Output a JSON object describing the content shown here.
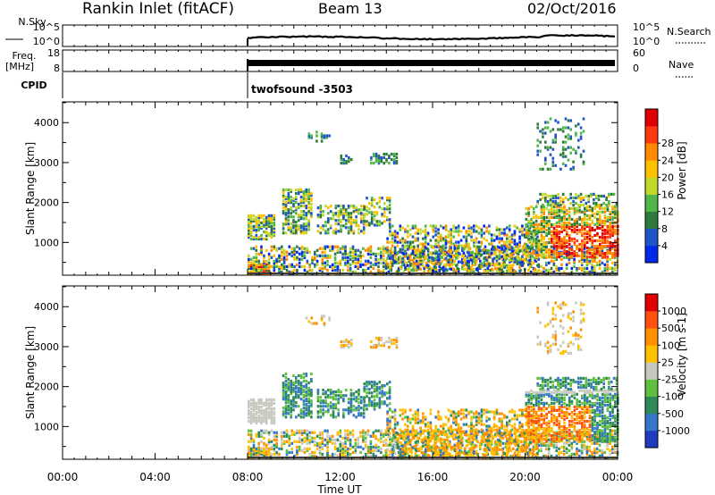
{
  "header": {
    "station": "Rankin Inlet (fitACF)",
    "beam": "Beam 13",
    "date": "02/Oct/2016"
  },
  "strips": {
    "nsky_label": "N.Sky",
    "nsky_ticks": [
      "10^5",
      "10^0"
    ],
    "nsearch_label": "N.Search",
    "nsearch_ticks": [
      "10^5",
      "10^0"
    ],
    "freq_label_1": "Freq.",
    "freq_label_2": "[MHz]",
    "freq_ticks": [
      "18",
      "8"
    ],
    "nave_label": "Nave",
    "nave_ticks": [
      "60",
      "0"
    ],
    "cpid_label": "CPID",
    "cpid_value": "twofsound -3503",
    "data_start": "08:00"
  },
  "chart_data": [
    {
      "type": "heatmap",
      "name": "power",
      "ylabel": "Slant Range [km]",
      "xlabel": "",
      "ylim": [
        180,
        4520
      ],
      "yticks": [
        1000,
        2000,
        3000,
        4000
      ],
      "colorbar_label": "Power [dB]",
      "colorbar_ticks": [
        "4",
        "8",
        "12",
        "16",
        "20",
        "24",
        "28"
      ],
      "colorbar_colors": [
        "#0028e8",
        "#1f55c8",
        "#2e7a3c",
        "#4fb648",
        "#c2d82a",
        "#ffc000",
        "#ff8a00",
        "#ff3a10",
        "#e00000"
      ],
      "data_start": "08:00"
    },
    {
      "type": "heatmap",
      "name": "velocity",
      "ylabel": "Slant Range [km]",
      "xlabel": "Time UT",
      "ylim": [
        180,
        4520
      ],
      "yticks": [
        1000,
        2000,
        3000,
        4000
      ],
      "xticks": [
        "00:00",
        "04:00",
        "08:00",
        "12:00",
        "16:00",
        "20:00",
        "00:00"
      ],
      "colorbar_label": "Velocity [m s-1]",
      "colorbar_ticks": [
        "1000",
        "500",
        "100",
        "25",
        "-25",
        "-100",
        "-500",
        "-1000"
      ],
      "colorbar_colors": [
        "#1f3cc0",
        "#3578c8",
        "#2e8a58",
        "#5fc040",
        "#c8c8c0",
        "#ffc000",
        "#ff9000",
        "#ff5010",
        "#e00000"
      ],
      "data_start": "08:00"
    }
  ]
}
